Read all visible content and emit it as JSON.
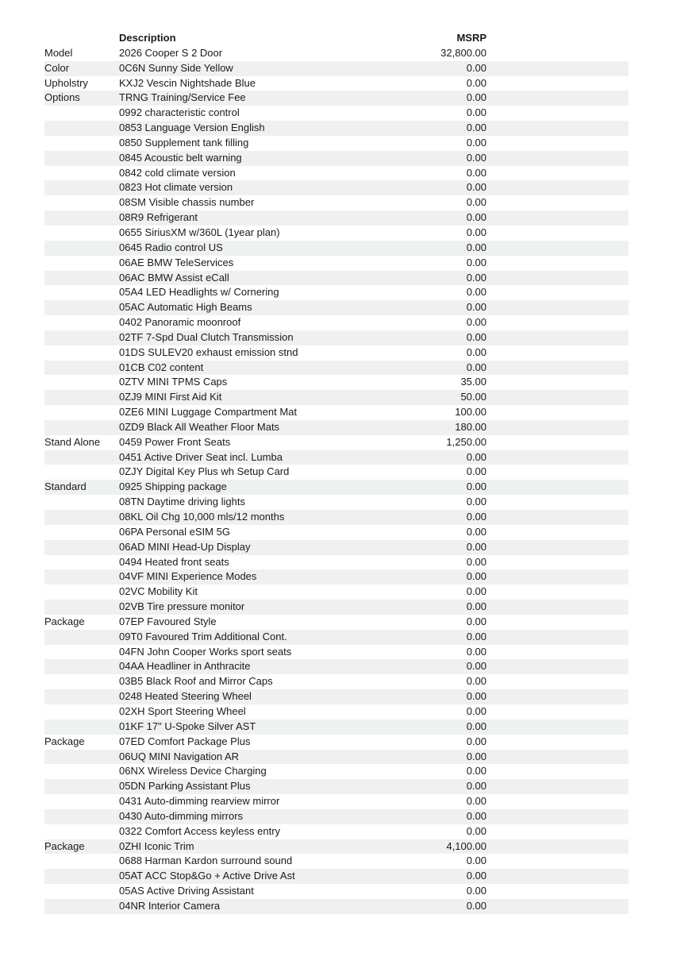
{
  "page": {
    "background_color": "#ffffff",
    "text_color": "#1a1a1a",
    "stripe_color": "#eff1f0"
  },
  "table": {
    "header": {
      "category": "",
      "description": "Description",
      "msrp": "MSRP"
    },
    "rows": [
      {
        "category": "Model",
        "description": "2026 Cooper S 2 Door",
        "msrp": "32,800.00"
      },
      {
        "category": "Color",
        "description": "0C6N Sunny Side Yellow",
        "msrp": "0.00"
      },
      {
        "category": "Upholstry",
        "description": "KXJ2 Vescin Nightshade Blue",
        "msrp": "0.00"
      },
      {
        "category": "Options",
        "description": "TRNG Training/Service Fee",
        "msrp": "0.00"
      },
      {
        "category": "",
        "description": "0992 characteristic control",
        "msrp": "0.00"
      },
      {
        "category": "",
        "description": "0853 Language Version English",
        "msrp": "0.00"
      },
      {
        "category": "",
        "description": "0850 Supplement tank filling",
        "msrp": "0.00"
      },
      {
        "category": "",
        "description": "0845 Acoustic belt warning",
        "msrp": "0.00"
      },
      {
        "category": "",
        "description": "0842 cold climate version",
        "msrp": "0.00"
      },
      {
        "category": "",
        "description": "0823 Hot climate version",
        "msrp": "0.00"
      },
      {
        "category": "",
        "description": "08SM Visible chassis number",
        "msrp": "0.00"
      },
      {
        "category": "",
        "description": "08R9 Refrigerant",
        "msrp": "0.00"
      },
      {
        "category": "",
        "description": "0655 SiriusXM w/360L (1year plan)",
        "msrp": "0.00"
      },
      {
        "category": "",
        "description": "0645 Radio control US",
        "msrp": "0.00"
      },
      {
        "category": "",
        "description": "06AE BMW TeleServices",
        "msrp": "0.00"
      },
      {
        "category": "",
        "description": "06AC BMW Assist eCall",
        "msrp": "0.00"
      },
      {
        "category": "",
        "description": "05A4 LED Headlights w/ Cornering",
        "msrp": "0.00"
      },
      {
        "category": "",
        "description": "05AC Automatic High Beams",
        "msrp": "0.00"
      },
      {
        "category": "",
        "description": "0402 Panoramic moonroof",
        "msrp": "0.00"
      },
      {
        "category": "",
        "description": "02TF 7-Spd Dual Clutch Transmission",
        "msrp": "0.00"
      },
      {
        "category": "",
        "description": "01DS SULEV20 exhaust emission stnd",
        "msrp": "0.00"
      },
      {
        "category": "",
        "description": "01CB C02 content",
        "msrp": "0.00"
      },
      {
        "category": "",
        "description": "0ZTV MINI TPMS Caps",
        "msrp": "35.00"
      },
      {
        "category": "",
        "description": "0ZJ9 MINI First Aid Kit",
        "msrp": "50.00"
      },
      {
        "category": "",
        "description": "0ZE6 MINI Luggage Compartment Mat",
        "msrp": "100.00"
      },
      {
        "category": "",
        "description": "0ZD9 Black All Weather Floor Mats",
        "msrp": "180.00"
      },
      {
        "category": "Stand Alone",
        "description": "0459 Power Front Seats",
        "msrp": "1,250.00"
      },
      {
        "category": "",
        "description": "0451 Active Driver Seat incl. Lumba",
        "msrp": "0.00"
      },
      {
        "category": "",
        "description": "0ZJY Digital Key Plus wh Setup Card",
        "msrp": "0.00"
      },
      {
        "category": "Standard",
        "description": "0925 Shipping package",
        "msrp": "0.00"
      },
      {
        "category": "",
        "description": "08TN Daytime driving lights",
        "msrp": "0.00"
      },
      {
        "category": "",
        "description": "08KL Oil Chg 10,000 mls/12 months",
        "msrp": "0.00"
      },
      {
        "category": "",
        "description": "06PA Personal eSIM 5G",
        "msrp": "0.00"
      },
      {
        "category": "",
        "description": "06AD MINI Head-Up Display",
        "msrp": "0.00"
      },
      {
        "category": "",
        "description": "0494 Heated front seats",
        "msrp": "0.00"
      },
      {
        "category": "",
        "description": "04VF MINI Experience Modes",
        "msrp": "0.00"
      },
      {
        "category": "",
        "description": "02VC Mobility Kit",
        "msrp": "0.00"
      },
      {
        "category": "",
        "description": "02VB Tire pressure monitor",
        "msrp": "0.00"
      },
      {
        "category": "Package",
        "description": "07EP Favoured Style",
        "msrp": "0.00"
      },
      {
        "category": "",
        "description": "09T0 Favoured Trim Additional Cont.",
        "msrp": "0.00"
      },
      {
        "category": "",
        "description": "04FN John Cooper Works sport seats",
        "msrp": "0.00"
      },
      {
        "category": "",
        "description": "04AA Headliner in Anthracite",
        "msrp": "0.00"
      },
      {
        "category": "",
        "description": "03B5 Black Roof and Mirror Caps",
        "msrp": "0.00"
      },
      {
        "category": "",
        "description": "0248 Heated Steering Wheel",
        "msrp": "0.00"
      },
      {
        "category": "",
        "description": "02XH Sport Steering Wheel",
        "msrp": "0.00"
      },
      {
        "category": "",
        "description": "01KF 17\" U-Spoke Silver AST",
        "msrp": "0.00"
      },
      {
        "category": "Package",
        "description": "07ED Comfort Package Plus",
        "msrp": "0.00"
      },
      {
        "category": "",
        "description": "06UQ MINI Navigation AR",
        "msrp": "0.00"
      },
      {
        "category": "",
        "description": "06NX Wireless Device Charging",
        "msrp": "0.00"
      },
      {
        "category": "",
        "description": "05DN Parking Assistant Plus",
        "msrp": "0.00"
      },
      {
        "category": "",
        "description": "0431 Auto-dimming rearview mirror",
        "msrp": "0.00"
      },
      {
        "category": "",
        "description": "0430 Auto-dimming mirrors",
        "msrp": "0.00"
      },
      {
        "category": "",
        "description": "0322 Comfort Access keyless entry",
        "msrp": "0.00"
      },
      {
        "category": "Package",
        "description": "0ZHI Iconic Trim",
        "msrp": "4,100.00"
      },
      {
        "category": "",
        "description": "0688 Harman Kardon surround sound",
        "msrp": "0.00"
      },
      {
        "category": "",
        "description": "05AT ACC Stop&Go + Active Drive Ast",
        "msrp": "0.00"
      },
      {
        "category": "",
        "description": "05AS Active Driving Assistant",
        "msrp": "0.00"
      },
      {
        "category": "",
        "description": "04NR Interior Camera",
        "msrp": "0.00"
      }
    ]
  }
}
